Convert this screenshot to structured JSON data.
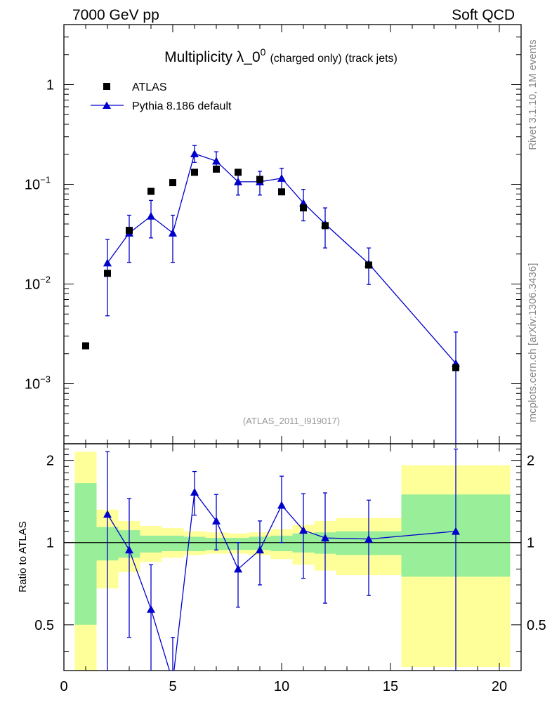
{
  "header": {
    "left": "7000 GeV pp",
    "right": "Soft QCD"
  },
  "side": {
    "rivet": "Rivet 3.1.10,  1M events",
    "mcplots": "mcplots.cern.ch [arXiv:1306.3436]"
  },
  "chart_data": {
    "type": "scatter",
    "title": "Multiplicity λ_0",
    "title_sup": "0",
    "title_suffix": "(charged only) (track jets)",
    "analysis_tag": "(ATLAS_2011_I919017)",
    "xlabel": "",
    "ylabel": "",
    "xlim": [
      0,
      21
    ],
    "ylim": [
      0.00025,
      4
    ],
    "yscale": "log",
    "legend": [
      {
        "name": "ATLAS",
        "marker": "square",
        "color": "#000000"
      },
      {
        "name": "Pythia 8.186 default",
        "marker": "triangle",
        "color": "#0000cc"
      }
    ],
    "x_ticks": [
      "0",
      "5",
      "10",
      "15",
      "20"
    ],
    "y_ticks": [
      {
        "value": 1,
        "label": "1",
        "exp": ""
      },
      {
        "value": 0.1,
        "label": "10",
        "exp": "−1"
      },
      {
        "value": 0.01,
        "label": "10",
        "exp": "−2"
      },
      {
        "value": 0.001,
        "label": "10",
        "exp": "−3"
      }
    ],
    "series": [
      {
        "name": "ATLAS",
        "x": [
          1,
          2,
          3,
          4,
          5,
          6,
          7,
          8,
          9,
          10,
          11,
          12,
          14,
          18
        ],
        "values": [
          0.0024,
          0.0128,
          0.0345,
          0.085,
          0.104,
          0.132,
          0.142,
          0.132,
          0.112,
          0.084,
          0.058,
          0.0385,
          0.0155,
          0.00145
        ]
      },
      {
        "name": "Pythia 8.186 default",
        "x": [
          2,
          3,
          4,
          5,
          6,
          7,
          8,
          9,
          10,
          11,
          12,
          14,
          18
        ],
        "values": [
          0.0163,
          0.0325,
          0.048,
          0.0325,
          0.203,
          0.171,
          0.106,
          0.106,
          0.115,
          0.065,
          0.04,
          0.016,
          0.0016
        ],
        "err_low": [
          0.0048,
          0.0165,
          0.029,
          0.0165,
          0.166,
          0.133,
          0.078,
          0.078,
          0.085,
          0.043,
          0.023,
          0.0099,
          0.0001
        ],
        "err_high": [
          0.028,
          0.049,
          0.069,
          0.049,
          0.245,
          0.212,
          0.135,
          0.135,
          0.145,
          0.089,
          0.058,
          0.023,
          0.0033
        ]
      }
    ],
    "ratio": {
      "ylabel": "Ratio to ATLAS",
      "ylim": [
        0.34,
        2.3
      ],
      "y_ticks": [
        "0.5",
        "1",
        "2"
      ],
      "y_tick_values": [
        0.5,
        1,
        2
      ],
      "reference": 1,
      "bands": [
        {
          "x0": 0.5,
          "x1": 1.5,
          "stat_lo": 0.5,
          "stat_hi": 1.65,
          "tot_lo": 0.3,
          "tot_hi": 2.15
        },
        {
          "x0": 1.5,
          "x1": 2.5,
          "stat_lo": 0.86,
          "stat_hi": 1.14,
          "tot_lo": 0.68,
          "tot_hi": 1.32
        },
        {
          "x0": 2.5,
          "x1": 3.5,
          "stat_lo": 0.88,
          "stat_hi": 1.11,
          "tot_lo": 0.78,
          "tot_hi": 1.2
        },
        {
          "x0": 3.5,
          "x1": 4.5,
          "stat_lo": 0.92,
          "stat_hi": 1.06,
          "tot_lo": 0.85,
          "tot_hi": 1.15
        },
        {
          "x0": 4.5,
          "x1": 5.5,
          "stat_lo": 0.93,
          "stat_hi": 1.06,
          "tot_lo": 0.88,
          "tot_hi": 1.13
        },
        {
          "x0": 5.5,
          "x1": 6.5,
          "stat_lo": 0.93,
          "stat_hi": 1.05,
          "tot_lo": 0.9,
          "tot_hi": 1.1
        },
        {
          "x0": 6.5,
          "x1": 7.5,
          "stat_lo": 0.94,
          "stat_hi": 1.04,
          "tot_lo": 0.91,
          "tot_hi": 1.09
        },
        {
          "x0": 7.5,
          "x1": 8.5,
          "stat_lo": 0.94,
          "stat_hi": 1.04,
          "tot_lo": 0.91,
          "tot_hi": 1.08
        },
        {
          "x0": 8.5,
          "x1": 9.5,
          "stat_lo": 0.94,
          "stat_hi": 1.05,
          "tot_lo": 0.9,
          "tot_hi": 1.09
        },
        {
          "x0": 9.5,
          "x1": 10.5,
          "stat_lo": 0.93,
          "stat_hi": 1.06,
          "tot_lo": 0.87,
          "tot_hi": 1.12
        },
        {
          "x0": 10.5,
          "x1": 11.5,
          "stat_lo": 0.92,
          "stat_hi": 1.08,
          "tot_lo": 0.83,
          "tot_hi": 1.16
        },
        {
          "x0": 11.5,
          "x1": 12.5,
          "stat_lo": 0.91,
          "stat_hi": 1.09,
          "tot_lo": 0.79,
          "tot_hi": 1.2
        },
        {
          "x0": 12.5,
          "x1": 15.5,
          "stat_lo": 0.9,
          "stat_hi": 1.1,
          "tot_lo": 0.76,
          "tot_hi": 1.23
        },
        {
          "x0": 15.5,
          "x1": 20.5,
          "stat_lo": 0.75,
          "stat_hi": 1.5,
          "tot_lo": 0.35,
          "tot_hi": 1.92
        }
      ],
      "mc": {
        "x": [
          2,
          3,
          4,
          5,
          6,
          7,
          8,
          9,
          10,
          11,
          12,
          14,
          18
        ],
        "values": [
          1.27,
          0.94,
          0.57,
          0.31,
          1.53,
          1.2,
          0.8,
          0.94,
          1.37,
          1.11,
          1.04,
          1.03,
          1.1
        ],
        "err_low": [
          0.3,
          0.45,
          0.3,
          0.2,
          1.26,
          0.94,
          0.58,
          0.7,
          1.0,
          0.74,
          0.6,
          0.64,
          0.3
        ],
        "err_high": [
          2.15,
          1.45,
          0.83,
          0.45,
          1.82,
          1.5,
          1.0,
          1.2,
          1.75,
          1.51,
          1.52,
          1.43,
          2.2
        ]
      }
    }
  }
}
